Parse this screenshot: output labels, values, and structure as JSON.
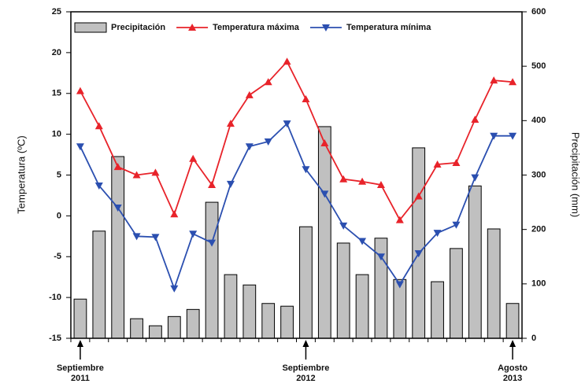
{
  "chart_data": {
    "type": "combo",
    "y_label": "Temperatura (ºC)",
    "y2_label": "Precipitación (mm)",
    "categories": [
      "Septiembre 2011",
      null,
      null,
      null,
      null,
      null,
      null,
      null,
      null,
      null,
      null,
      null,
      "Septiembre 2012",
      null,
      null,
      null,
      null,
      null,
      null,
      null,
      null,
      null,
      null,
      "Agosto 2013"
    ],
    "series": [
      {
        "name": "Precipitación",
        "type": "bar",
        "axis": "y2",
        "color": "#c0c0c0",
        "values": [
          72,
          197,
          334,
          36,
          23,
          40,
          53,
          250,
          117,
          98,
          64,
          59,
          205,
          389,
          175,
          117,
          184,
          108,
          350,
          104,
          165,
          280,
          201,
          64
        ]
      },
      {
        "name": "Temperatura máxima",
        "type": "line",
        "marker": "up",
        "color": "#e8232a",
        "values": [
          15.3,
          11,
          6,
          5,
          5.3,
          0.2,
          7,
          3.8,
          11.3,
          14.8,
          16.4,
          18.9,
          14.3,
          8.9,
          4.5,
          4.2,
          3.8,
          -0.5,
          2.4,
          6.3,
          6.5,
          11.8,
          16.6,
          16.4
        ]
      },
      {
        "name": "Temperatura mínima",
        "type": "line",
        "marker": "down",
        "color": "#2b4fb0",
        "values": [
          8.5,
          3.7,
          1,
          -2.5,
          -2.6,
          -8.9,
          -2.2,
          -3.3,
          3.9,
          8.5,
          9.1,
          11.3,
          5.7,
          2.7,
          -1.2,
          -3.1,
          -5,
          -8.4,
          -4.6,
          -2.1,
          -1.1,
          4.7,
          9.8,
          9.8
        ]
      }
    ],
    "ylim": [
      -15,
      25
    ],
    "yticks": [
      -15,
      -10,
      -5,
      0,
      5,
      10,
      15,
      20,
      25
    ],
    "y2lim": [
      0,
      600
    ],
    "y2ticks": [
      0,
      100,
      200,
      300,
      400,
      500,
      600
    ],
    "legend": "top"
  }
}
